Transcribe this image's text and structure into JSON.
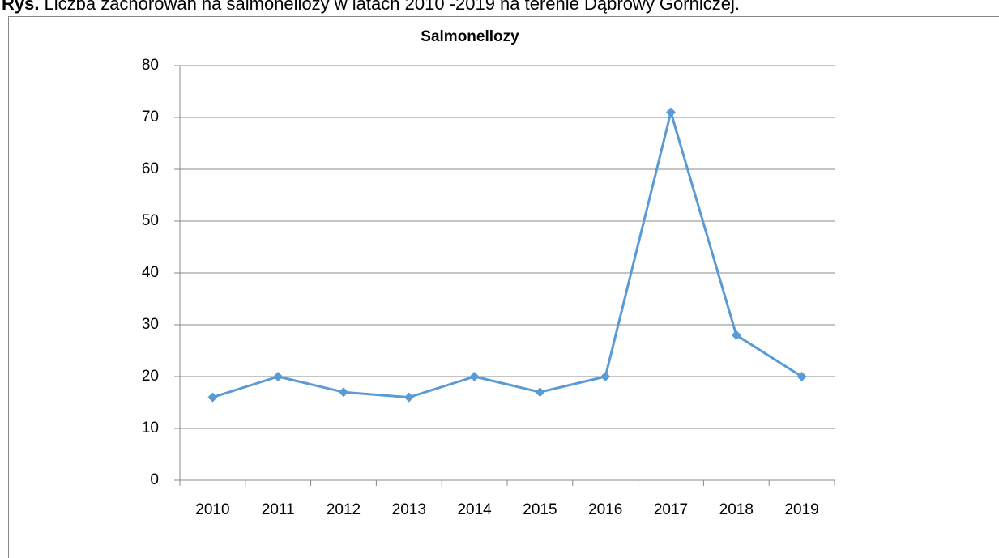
{
  "caption_label": "Rys.",
  "caption": "Liczba zachorowań na salmonellozy w latach 2010 -2019 na terenie Dąbrowy Górniczej.",
  "chart_data": {
    "type": "line",
    "title": "Salmonellozy",
    "categories": [
      "2010",
      "2011",
      "2012",
      "2013",
      "2014",
      "2015",
      "2016",
      "2017",
      "2018",
      "2019"
    ],
    "series": [
      {
        "name": "Salmonellozy",
        "color": "#5b9bd5",
        "values": [
          16,
          20,
          17,
          16,
          20,
          17,
          20,
          71,
          28,
          20
        ]
      }
    ],
    "ylim": [
      0,
      80
    ],
    "yticks": [
      0,
      10,
      20,
      30,
      40,
      50,
      60,
      70,
      80
    ],
    "grid": true
  }
}
